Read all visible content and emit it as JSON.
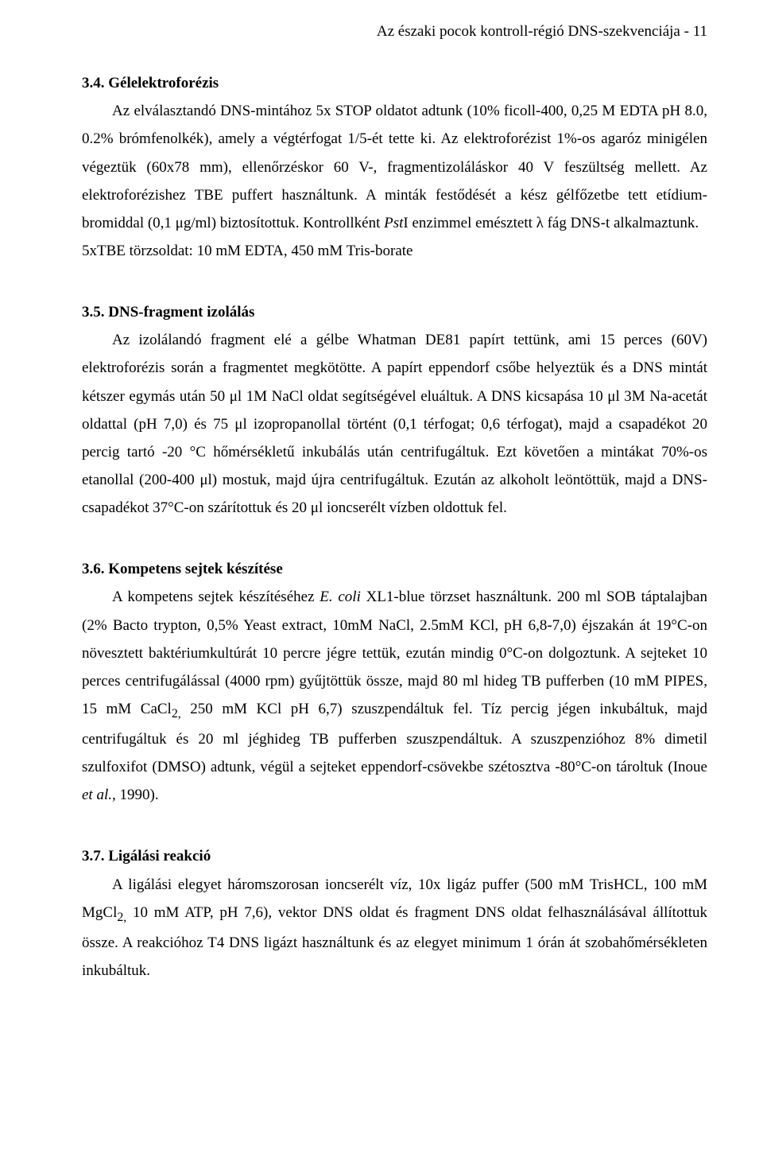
{
  "header": {
    "text": "Az északi pocok kontroll-régió DNS-szekvenciája   -   11"
  },
  "s34": {
    "heading": "3.4. Gélelektroforézis",
    "p1": "Az elválasztandó DNS-mintához 5x STOP oldatot adtunk (10% ficoll-400, 0,25 M EDTA pH 8.0, 0.2% brómfenolkék), amely a végtérfogat 1/5-ét tette ki. Az elektroforézist 1%-os agaróz minigélen végeztük (60x78 mm), ellenőrzéskor 60 V-, fragmentizoláláskor 40 V feszültség mellett. Az elektroforézishez TBE puffert használtunk. A minták festődését a kész gélfőzetbe tett etídium-bromiddal (0,1 μg/ml) biztosítottuk. Kontrollként ",
    "p1_ital": "Pst",
    "p1_after": "I enzimmel emésztett λ fág DNS-t alkalmaztunk.",
    "p2": "5xTBE törzsoldat: 10 mM EDTA, 450 mM Tris-borate"
  },
  "s35": {
    "heading": "3.5. DNS-fragment izolálás",
    "p1": "Az izolálandó fragment elé a gélbe Whatman DE81 papírt tettünk, ami 15 perces (60V) elektroforézis során a fragmentet megkötötte. A papírt eppendorf csőbe helyeztük és a DNS mintát kétszer egymás után 50 μl 1M NaCl oldat segítségével eluáltuk. A DNS kicsapása 10 μl 3M Na-acetát oldattal (pH 7,0) és 75 μl izopropanollal történt (0,1 térfogat; 0,6 térfogat), majd a csapadékot 20 percig tartó -20 °C hőmérsékletű inkubálás után centrifugáltuk. Ezt követően a mintákat 70%-os etanollal (200-400 μl) mostuk, majd újra centrifugáltuk. Ezután az alkoholt leöntöttük, majd a DNS-csapadékot 37°C-on szárítottuk és 20 μl ioncserélt vízben oldottuk fel."
  },
  "s36": {
    "heading": "3.6. Kompetens sejtek készítése",
    "p1a": "A kompetens sejtek készítéséhez ",
    "p1_ital": "E. coli",
    "p1b": " XL1-blue törzset használtunk. 200 ml SOB táptalajban (2% Bacto trypton, 0,5% Yeast extract, 10mM NaCl, 2.5mM KCl, pH 6,8-7,0) éjszakán át 19°C-on növesztett baktériumkultúrát 10 percre jégre tettük, ezután mindig 0°C-on dolgoztunk. A sejteket 10 perces centrifugálással (4000 rpm) gyűjtöttük össze, majd 80 ml hideg TB pufferben (10 mM PIPES, 15 mM CaCl",
    "p1_sub1": "2,",
    "p1c": " 250 mM KCl pH 6,7) szuszpendáltuk fel. Tíz percig jégen inkubáltuk, majd centrifugáltuk és 20 ml jéghideg TB pufferben szuszpendáltuk. A szuszpenzióhoz 8% dimetil szulfoxifot (DMSO) adtunk, végül a sejteket eppendorf-csövekbe szétosztva -80°C-on tároltuk (Inoue ",
    "p1_ital2": "et al.",
    "p1d": ", 1990)."
  },
  "s37": {
    "heading": "3.7. Ligálási reakció",
    "p1a": "A ligálási elegyet háromszorosan ioncserélt víz, 10x ligáz puffer (500 mM TrisHCL, 100 mM MgCl",
    "p1_sub1": "2,",
    "p1b": " 10 mM ATP, pH 7,6), vektor DNS oldat és fragment DNS oldat felhasználásával állítottuk össze. A reakcióhoz T4 DNS ligázt használtunk és az elegyet minimum 1 órán át szobahőmérsékleten inkubáltuk."
  }
}
